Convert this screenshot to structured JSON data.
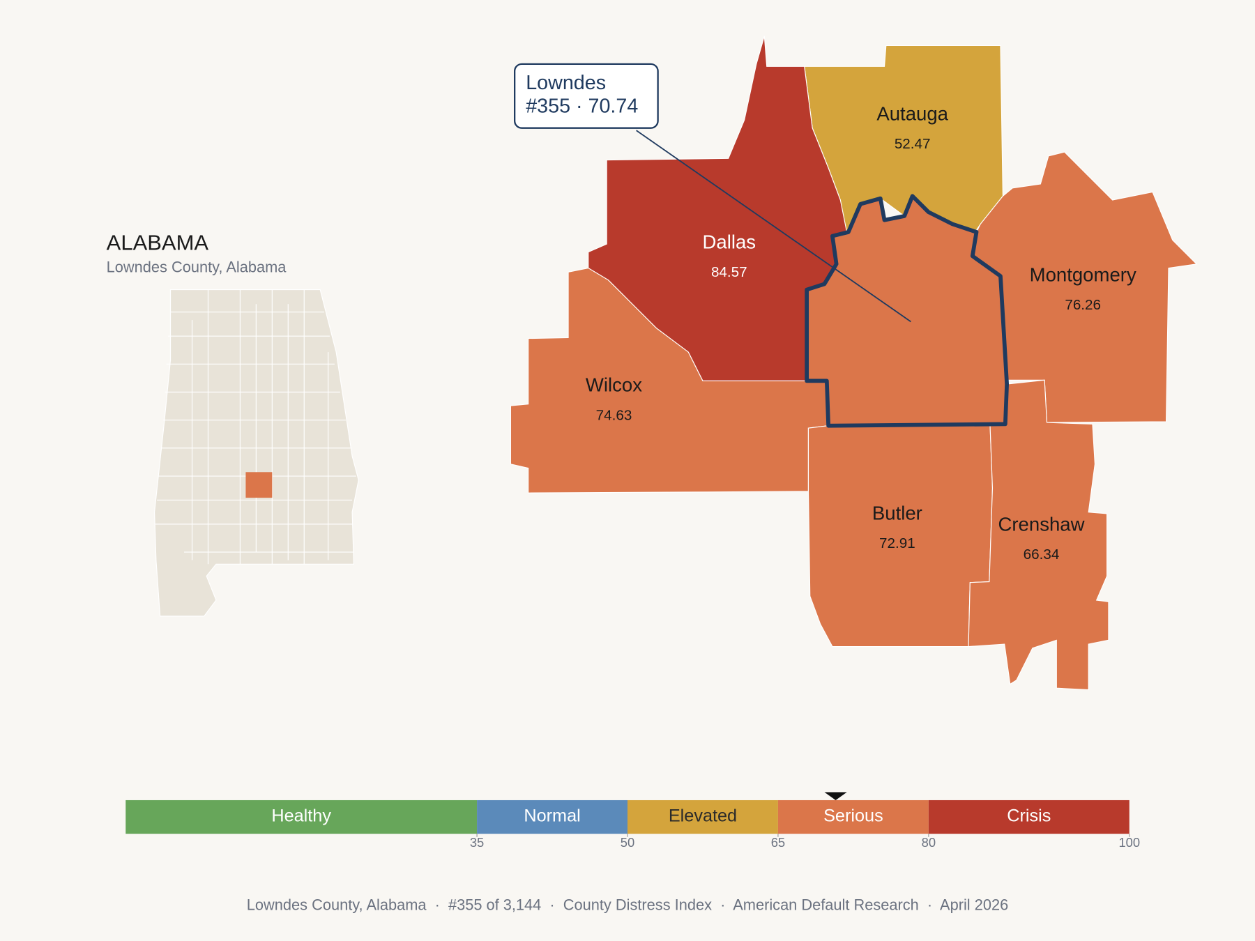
{
  "inset": {
    "title": "ALABAMA",
    "subtitle": "Lowndes County, Alabama"
  },
  "map": {
    "counties": [
      {
        "name": "Autauga",
        "value": 52.47
      },
      {
        "name": "Dallas",
        "value": 84.57
      },
      {
        "name": "Montgomery",
        "value": 76.26
      },
      {
        "name": "Wilcox",
        "value": 74.63
      },
      {
        "name": "Butler",
        "value": 72.91
      },
      {
        "name": "Crenshaw",
        "value": 66.34
      }
    ],
    "highlight": {
      "value": 70.74,
      "callout": [
        "Lowndes",
        "#355 · 70.74"
      ]
    }
  },
  "scale": {
    "xlim": [
      0,
      100
    ],
    "ticks": [
      35,
      50,
      65,
      80,
      100
    ],
    "bands": [
      {
        "label": "Healthy",
        "color": "#67a65a",
        "text_color": "#ffffff"
      },
      {
        "label": "Normal",
        "color": "#5b8aba",
        "text_color": "#ffffff"
      },
      {
        "label": "Elevated",
        "color": "#d4a43c",
        "text_color": "#2a2a2a"
      },
      {
        "label": "Serious",
        "color": "#db764a",
        "text_color": "#ffffff"
      },
      {
        "label": "Crisis",
        "color": "#b83a2c",
        "text_color": "#ffffff"
      }
    ]
  },
  "footer": "Lowndes County, Alabama  ·  #355 of 3,144  ·  County Distress Index  ·  American Default Research  ·  April 2026"
}
